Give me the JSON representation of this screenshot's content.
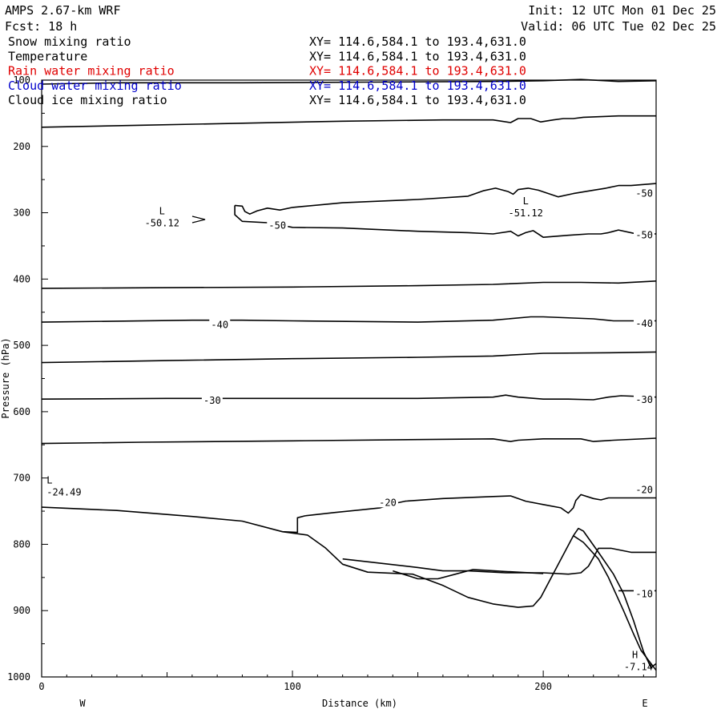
{
  "header": {
    "model": "AMPS 2.67-km WRF",
    "init": "Init: 12 UTC Mon 01 Dec 25",
    "fcst": "Fcst:  18 h",
    "valid": "Valid: 06 UTC Tue 02 Dec 25"
  },
  "fields": [
    {
      "name": "Snow mixing ratio",
      "xy": "XY= 114.6,584.1 to 193.4,631.0",
      "color": "#000000"
    },
    {
      "name": "Temperature",
      "xy": "XY= 114.6,584.1 to 193.4,631.0",
      "color": "#000000"
    },
    {
      "name": "Rain water mixing ratio",
      "xy": "XY= 114.6,584.1 to 193.4,631.0",
      "color": "#e00000"
    },
    {
      "name": "Cloud water mixing ratio",
      "xy": "XY= 114.6,584.1 to 193.4,631.0",
      "color": "#0000cc"
    },
    {
      "name": "Cloud ice mixing ratio",
      "xy": "XY= 114.6,584.1 to 193.4,631.0",
      "color": "#000000"
    }
  ],
  "chart_data": {
    "type": "line",
    "title": "",
    "xlabel": "Distance (km)",
    "ylabel": "Pressure (hPa)",
    "xlim": [
      0,
      245
    ],
    "ylim": [
      1000,
      100
    ],
    "x_ticks": [
      0,
      100,
      200
    ],
    "y_ticks": [
      100,
      200,
      300,
      400,
      500,
      600,
      700,
      800,
      900,
      1000
    ],
    "x_end_labels": {
      "left": "W",
      "right": "E"
    },
    "series": [
      {
        "points": [
          [
            0,
            106
          ],
          [
            30,
            104
          ],
          [
            80,
            104
          ],
          [
            130,
            103
          ],
          [
            180,
            102
          ],
          [
            200,
            101
          ],
          [
            215,
            99
          ],
          [
            230,
            102
          ],
          [
            245,
            101
          ]
        ]
      },
      {
        "points": [
          [
            0,
            171
          ],
          [
            40,
            168
          ],
          [
            80,
            165
          ],
          [
            120,
            162
          ],
          [
            160,
            160
          ],
          [
            180,
            160
          ],
          [
            187,
            164
          ],
          [
            190,
            158
          ],
          [
            195,
            158
          ],
          [
            199,
            163
          ],
          [
            204,
            160
          ],
          [
            208,
            158
          ],
          [
            212,
            158
          ],
          [
            216,
            156
          ],
          [
            230,
            154
          ],
          [
            245,
            154
          ]
        ]
      },
      {
        "points": [
          [
            77,
            289
          ],
          [
            80,
            290
          ],
          [
            81,
            298
          ],
          [
            83,
            302
          ],
          [
            86,
            297
          ],
          [
            90,
            293
          ],
          [
            95,
            296
          ],
          [
            100,
            292
          ],
          [
            120,
            285
          ],
          [
            150,
            280
          ],
          [
            170,
            275
          ],
          [
            176,
            267
          ],
          [
            181,
            263
          ],
          [
            186,
            268
          ],
          [
            188,
            272
          ],
          [
            190,
            265
          ],
          [
            194,
            263
          ],
          [
            198,
            266
          ],
          [
            206,
            276
          ],
          [
            212,
            271
          ],
          [
            220,
            266
          ],
          [
            225,
            263
          ],
          [
            230,
            259
          ],
          [
            235,
            259
          ],
          [
            245,
            256
          ]
        ]
      },
      {
        "points": [
          [
            77,
            289
          ],
          [
            77,
            303
          ],
          [
            80,
            313
          ],
          [
            90,
            315
          ],
          [
            100,
            322
          ],
          [
            120,
            323
          ],
          [
            150,
            328
          ],
          [
            170,
            330
          ],
          [
            180,
            332
          ],
          [
            187,
            328
          ],
          [
            190,
            335
          ],
          [
            193,
            330
          ],
          [
            196,
            327
          ],
          [
            200,
            337
          ],
          [
            210,
            334
          ],
          [
            218,
            332
          ],
          [
            223,
            332
          ],
          [
            226,
            330
          ],
          [
            230,
            326
          ],
          [
            236,
            331
          ],
          [
            245,
            332
          ]
        ]
      },
      {
        "points": [
          [
            0,
            414
          ],
          [
            50,
            413
          ],
          [
            100,
            412
          ],
          [
            150,
            410
          ],
          [
            180,
            408
          ],
          [
            200,
            405
          ],
          [
            215,
            405
          ],
          [
            230,
            406
          ],
          [
            245,
            403
          ]
        ]
      },
      {
        "points": [
          [
            0,
            465
          ],
          [
            60,
            462
          ],
          [
            80,
            462
          ],
          [
            100,
            463
          ],
          [
            150,
            465
          ],
          [
            180,
            462
          ],
          [
            195,
            457
          ],
          [
            200,
            457
          ],
          [
            220,
            460
          ],
          [
            228,
            463
          ],
          [
            245,
            463
          ]
        ]
      },
      {
        "points": [
          [
            0,
            526
          ],
          [
            50,
            523
          ],
          [
            100,
            520
          ],
          [
            150,
            518
          ],
          [
            180,
            516
          ],
          [
            200,
            512
          ],
          [
            230,
            511
          ],
          [
            245,
            510
          ]
        ]
      },
      {
        "points": [
          [
            0,
            581
          ],
          [
            50,
            580
          ],
          [
            100,
            580
          ],
          [
            150,
            580
          ],
          [
            180,
            578
          ],
          [
            185,
            575
          ],
          [
            190,
            578
          ],
          [
            200,
            581
          ],
          [
            210,
            581
          ],
          [
            220,
            582
          ],
          [
            226,
            578
          ],
          [
            231,
            576
          ],
          [
            245,
            578
          ]
        ]
      },
      {
        "points": [
          [
            0,
            648
          ],
          [
            40,
            646
          ],
          [
            100,
            644
          ],
          [
            150,
            642
          ],
          [
            180,
            641
          ],
          [
            187,
            645
          ],
          [
            190,
            643
          ],
          [
            200,
            641
          ],
          [
            215,
            641
          ],
          [
            220,
            645
          ],
          [
            228,
            643
          ],
          [
            245,
            640
          ]
        ]
      },
      {
        "points": [
          [
            0,
            744
          ],
          [
            30,
            749
          ],
          [
            60,
            758
          ],
          [
            80,
            765
          ],
          [
            96,
            781
          ],
          [
            102,
            782
          ],
          [
            102,
            760
          ],
          [
            105,
            757
          ],
          [
            117,
            752
          ],
          [
            130,
            747
          ],
          [
            135,
            745
          ],
          [
            140,
            739
          ],
          [
            145,
            735
          ],
          [
            160,
            731
          ],
          [
            180,
            728
          ],
          [
            187,
            727
          ],
          [
            193,
            735
          ],
          [
            200,
            740
          ],
          [
            207,
            745
          ],
          [
            210,
            753
          ],
          [
            212,
            745
          ],
          [
            213,
            734
          ],
          [
            215,
            725
          ],
          [
            220,
            731
          ],
          [
            223,
            733
          ],
          [
            226,
            730
          ],
          [
            234,
            730
          ],
          [
            245,
            730
          ]
        ]
      },
      {
        "points": [
          [
            96,
            781
          ],
          [
            106,
            786
          ],
          [
            113,
            805
          ],
          [
            120,
            830
          ],
          [
            130,
            842
          ],
          [
            148,
            845
          ],
          [
            160,
            862
          ],
          [
            170,
            880
          ],
          [
            180,
            890
          ],
          [
            190,
            895
          ],
          [
            196,
            893
          ],
          [
            199,
            880
          ],
          [
            206,
            830
          ],
          [
            212,
            787
          ],
          [
            214,
            776
          ],
          [
            216,
            780
          ],
          [
            222,
            812
          ],
          [
            228,
            845
          ],
          [
            232,
            874
          ],
          [
            236,
            915
          ],
          [
            240,
            962
          ],
          [
            243,
            986
          ],
          [
            245,
            980
          ]
        ]
      },
      {
        "points": [
          [
            120,
            822
          ],
          [
            150,
            835
          ],
          [
            160,
            840
          ],
          [
            170,
            840
          ],
          [
            185,
            843
          ],
          [
            200,
            843
          ],
          [
            210,
            845
          ],
          [
            215,
            843
          ],
          [
            218,
            833
          ],
          [
            220,
            820
          ],
          [
            222,
            806
          ],
          [
            227,
            806
          ],
          [
            235,
            812
          ],
          [
            245,
            812
          ]
        ]
      },
      {
        "points": [
          [
            140,
            840
          ],
          [
            150,
            852
          ],
          [
            158,
            852
          ],
          [
            165,
            845
          ],
          [
            172,
            838
          ],
          [
            185,
            841
          ],
          [
            200,
            844
          ]
        ]
      },
      {
        "points": [
          [
            212,
            787
          ],
          [
            216,
            797
          ],
          [
            222,
            822
          ],
          [
            226,
            850
          ],
          [
            232,
            900
          ],
          [
            236,
            935
          ],
          [
            239,
            960
          ],
          [
            242,
            975
          ],
          [
            245,
            990
          ]
        ]
      },
      {
        "points": [
          [
            230,
            870
          ],
          [
            245,
            870
          ]
        ]
      }
    ],
    "labels": [
      {
        "text": "-50",
        "x": 245,
        "y": 271
      },
      {
        "text": "-50",
        "x": 245,
        "y": 334
      },
      {
        "text": "-50",
        "x": 94,
        "y": 319
      },
      {
        "text": "-40",
        "x": 71,
        "y": 469
      },
      {
        "text": "-40",
        "x": 245,
        "y": 467
      },
      {
        "text": "-30",
        "x": 68,
        "y": 583
      },
      {
        "text": "-30",
        "x": 245,
        "y": 582
      },
      {
        "text": "-20",
        "x": 138,
        "y": 737
      },
      {
        "text": "-20",
        "x": 245,
        "y": 718
      },
      {
        "text": "-10",
        "x": 245,
        "y": 875
      }
    ],
    "extrema": [
      {
        "type": "L",
        "value": "-50.12",
        "x": 48,
        "y": 306
      },
      {
        "type": "L",
        "value": "-51.12",
        "x": 193,
        "y": 291
      },
      {
        "type": "L",
        "value": "-24.49",
        "x": 2,
        "y": 712
      },
      {
        "type": "H",
        "value": "-7.14",
        "x": 245,
        "y": 975
      }
    ]
  }
}
